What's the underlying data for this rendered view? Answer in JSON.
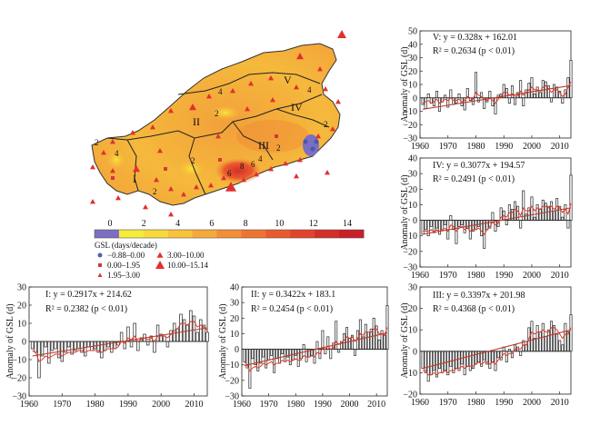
{
  "map": {
    "region_labels": [
      "I",
      "II",
      "III",
      "IV",
      "V"
    ],
    "contour_labels": [
      "2",
      "4",
      "2",
      "4",
      "2",
      "2",
      "4",
      "2",
      "6",
      "8",
      "6",
      "4",
      "2"
    ],
    "colorbar": {
      "ticks": [
        "0",
        "2",
        "4",
        "6",
        "8",
        "10",
        "12",
        "14"
      ],
      "colors": [
        "#7b6fc1",
        "#f6ec3a",
        "#f8d93a",
        "#f8c33a",
        "#f6a93a",
        "#f28e35",
        "#ef7432",
        "#ea5a2f",
        "#e3432d",
        "#d42e2a",
        "#c91f28"
      ]
    },
    "legend": {
      "title": "GSL (days/decade)",
      "items": [
        {
          "label": "−0.88–0.00",
          "symbol": "circle",
          "color": "#5560b8"
        },
        {
          "label": "0.00–1.95",
          "symbol": "square",
          "color": "#d23a3a"
        },
        {
          "label": "1.95–3.00",
          "symbol": "tri-small",
          "color": "#e03030"
        },
        {
          "label": "3.00–10.00",
          "symbol": "tri-mid",
          "color": "#e03030"
        },
        {
          "label": "10.00–15.14",
          "symbol": "tri-large",
          "color": "#e03030"
        }
      ]
    }
  },
  "chart_data": [
    {
      "type": "bar",
      "region": "V",
      "equation": "V: y = 0.328x + 162.01",
      "r2": "R² = 0.2634 (p < 0.01)",
      "ylabel": "Anomaly of GSL (d)",
      "xlim": [
        1960,
        2014
      ],
      "ylim": [
        -30,
        50
      ],
      "xticks": [
        "1960",
        "1970",
        "1980",
        "1990",
        "2000",
        "2010"
      ],
      "yticks": [
        "−30",
        "−20",
        "−10",
        "0",
        "10",
        "20",
        "30",
        "40",
        "50"
      ],
      "years_start": 1961,
      "values": [
        -5,
        -8,
        3,
        -4,
        -6,
        5,
        -10,
        -3,
        2,
        -7,
        6,
        -5,
        -4,
        3,
        -6,
        -9,
        7,
        -2,
        -5,
        19,
        -3,
        4,
        -8,
        -3,
        5,
        -6,
        -12,
        2,
        3,
        10,
        7,
        -4,
        9,
        -5,
        4,
        13,
        -6,
        6,
        11,
        15,
        3,
        8,
        4,
        13,
        12,
        9,
        -3,
        10,
        8,
        5,
        -4,
        6,
        15,
        28
      ],
      "smooth": [
        -4,
        -3,
        -2,
        -4,
        -3,
        -1,
        -4,
        -3,
        -1,
        -2,
        0,
        -2,
        -2,
        -1,
        -3,
        -2,
        1,
        0,
        -1,
        4,
        2,
        1,
        -1,
        -2,
        0,
        -2,
        -4,
        -1,
        1,
        4,
        4,
        2,
        3,
        1,
        2,
        5,
        2,
        4,
        6,
        8,
        6,
        6,
        5,
        8,
        9,
        7,
        4,
        6,
        6,
        4,
        1,
        3,
        8,
        12
      ],
      "trend": [
        -8.5,
        9.2
      ]
    },
    {
      "type": "bar",
      "region": "IV",
      "equation": "IV: y = 0.3077x + 194.57",
      "r2": "R² = 0.2491 (p < 0.01)",
      "ylabel": "Anomaly of GSL (d)",
      "xlim": [
        1960,
        2014
      ],
      "ylim": [
        -30,
        40
      ],
      "xticks": [
        "1960",
        "1970",
        "1980",
        "1990",
        "2000",
        "2010"
      ],
      "yticks": [
        "−30",
        "−20",
        "−10",
        "0",
        "10",
        "20",
        "30",
        "40"
      ],
      "years_start": 1961,
      "values": [
        -9,
        -6,
        -10,
        -4,
        -8,
        -5,
        -9,
        -6,
        -3,
        -12,
        3,
        -6,
        -15,
        -4,
        -3,
        -8,
        -5,
        -12,
        -7,
        -6,
        -4,
        -10,
        -18,
        -6,
        -5,
        5,
        -7,
        -4,
        8,
        6,
        -3,
        10,
        7,
        12,
        9,
        -5,
        19,
        4,
        8,
        15,
        2,
        10,
        7,
        13,
        11,
        9,
        12,
        6,
        14,
        9,
        2,
        10,
        -5,
        29
      ],
      "smooth": [
        -7,
        -7,
        -7,
        -6,
        -7,
        -6,
        -7,
        -6,
        -5,
        -7,
        -3,
        -4,
        -7,
        -5,
        -4,
        -6,
        -5,
        -7,
        -6,
        -6,
        -5,
        -7,
        -9,
        -6,
        -4,
        -1,
        -3,
        -2,
        2,
        3,
        2,
        5,
        5,
        7,
        6,
        3,
        8,
        6,
        6,
        9,
        6,
        8,
        7,
        9,
        9,
        8,
        9,
        7,
        9,
        8,
        5,
        7,
        4,
        11
      ],
      "trend": [
        -9,
        8
      ]
    },
    {
      "type": "bar",
      "region": "III",
      "equation": "III: y = 0.3397x + 201.98",
      "r2": "R² = 0.4368 (p < 0.01)",
      "ylabel": "Anomaly of GSL (d)",
      "xlim": [
        1960,
        2014
      ],
      "ylim": [
        -20,
        30
      ],
      "xticks": [
        "1960",
        "1970",
        "1980",
        "1990",
        "2000",
        "2010"
      ],
      "yticks": [
        "−20",
        "−10",
        "0",
        "10",
        "20",
        "30"
      ],
      "years_start": 1961,
      "values": [
        -8,
        -10,
        -14,
        -11,
        -9,
        -12,
        -8,
        -10,
        -9,
        -11,
        -7,
        -10,
        -8,
        -9,
        -6,
        -11,
        -7,
        -9,
        -8,
        -6,
        -5,
        -7,
        -4,
        -6,
        -8,
        -5,
        -9,
        -3,
        -4,
        2,
        -5,
        1,
        -3,
        3,
        2,
        -2,
        5,
        3,
        11,
        14,
        6,
        12,
        9,
        13,
        7,
        10,
        14,
        12,
        8,
        5,
        3,
        13,
        9,
        17
      ],
      "smooth": [
        -9,
        -9,
        -11,
        -11,
        -10,
        -11,
        -10,
        -10,
        -9,
        -10,
        -9,
        -9,
        -8,
        -8,
        -7,
        -8,
        -7,
        -7,
        -7,
        -6,
        -5,
        -6,
        -5,
        -5,
        -6,
        -5,
        -6,
        -4,
        -3,
        -1,
        -2,
        -1,
        -1,
        1,
        1,
        1,
        3,
        3,
        6,
        9,
        8,
        9,
        9,
        10,
        9,
        9,
        11,
        11,
        10,
        8,
        6,
        8,
        8,
        11
      ],
      "trend": [
        -8,
        10
      ]
    },
    {
      "type": "bar",
      "region": "I",
      "equation": "I: y = 0.2917x + 214.62",
      "r2": "R² = 0.2382 (p < 0.01)",
      "ylabel": "Anomaly of GSL (d)",
      "xlim": [
        1960,
        2014
      ],
      "ylim": [
        -30,
        30
      ],
      "xticks": [
        "1960",
        "1970",
        "1980",
        "1990",
        "2000",
        "2010"
      ],
      "yticks": [
        "−30",
        "−20",
        "−10",
        "0",
        "10",
        "20",
        "30"
      ],
      "years_start": 1961,
      "values": [
        -4,
        -6,
        -20,
        -8,
        -3,
        -12,
        -5,
        -4,
        -9,
        -11,
        -6,
        -3,
        -7,
        -5,
        -4,
        -6,
        -8,
        -3,
        -5,
        -4,
        -6,
        -9,
        -5,
        -3,
        -6,
        -4,
        -2,
        5,
        -4,
        8,
        -3,
        10,
        -5,
        2,
        4,
        -2,
        3,
        -6,
        9,
        4,
        3,
        -3,
        6,
        10,
        7,
        15,
        12,
        9,
        17,
        14,
        5,
        12,
        9,
        5
      ],
      "smooth": [
        -5,
        -6,
        -11,
        -10,
        -8,
        -9,
        -8,
        -7,
        -7,
        -8,
        -7,
        -6,
        -6,
        -6,
        -5,
        -5,
        -6,
        -5,
        -5,
        -5,
        -5,
        -6,
        -5,
        -4,
        -4,
        -4,
        -3,
        0,
        -1,
        2,
        1,
        3,
        0,
        1,
        2,
        1,
        2,
        0,
        3,
        3,
        3,
        2,
        4,
        6,
        7,
        10,
        10,
        9,
        11,
        11,
        8,
        9,
        8,
        6
      ],
      "trend": [
        -8,
        7.5
      ]
    },
    {
      "type": "bar",
      "region": "II",
      "equation": "II: y = 0.3422x + 183.1",
      "r2": "R² = 0.2454 (p < 0.01)",
      "ylabel": "Anomaly of GSL (d)",
      "xlim": [
        1960,
        2014
      ],
      "ylim": [
        -30,
        40
      ],
      "xticks": [
        "1960",
        "1970",
        "1980",
        "1990",
        "2000",
        "2010"
      ],
      "yticks": [
        "−30",
        "−20",
        "−10",
        "0",
        "10",
        "20",
        "30",
        "40"
      ],
      "years_start": 1961,
      "values": [
        -8,
        -12,
        -25,
        -6,
        -10,
        -14,
        -9,
        -5,
        -12,
        -7,
        -4,
        -15,
        -6,
        -9,
        -3,
        -8,
        -5,
        -10,
        -7,
        -4,
        -11,
        -6,
        3,
        -8,
        -5,
        -4,
        -9,
        5,
        -6,
        12,
        -3,
        8,
        -6,
        4,
        18,
        -2,
        5,
        10,
        14,
        7,
        9,
        -4,
        12,
        19,
        8,
        16,
        11,
        13,
        20,
        15,
        6,
        12,
        9,
        28
      ],
      "smooth": [
        -8,
        -10,
        -14,
        -12,
        -11,
        -12,
        -11,
        -9,
        -10,
        -9,
        -8,
        -10,
        -9,
        -9,
        -7,
        -8,
        -7,
        -8,
        -7,
        -6,
        -7,
        -7,
        -4,
        -5,
        -5,
        -4,
        -5,
        -2,
        -3,
        1,
        0,
        2,
        0,
        1,
        5,
        3,
        4,
        6,
        8,
        7,
        8,
        5,
        7,
        10,
        9,
        11,
        11,
        11,
        13,
        13,
        10,
        10,
        9,
        14
      ],
      "trend": [
        -10.5,
        10.5
      ]
    }
  ]
}
